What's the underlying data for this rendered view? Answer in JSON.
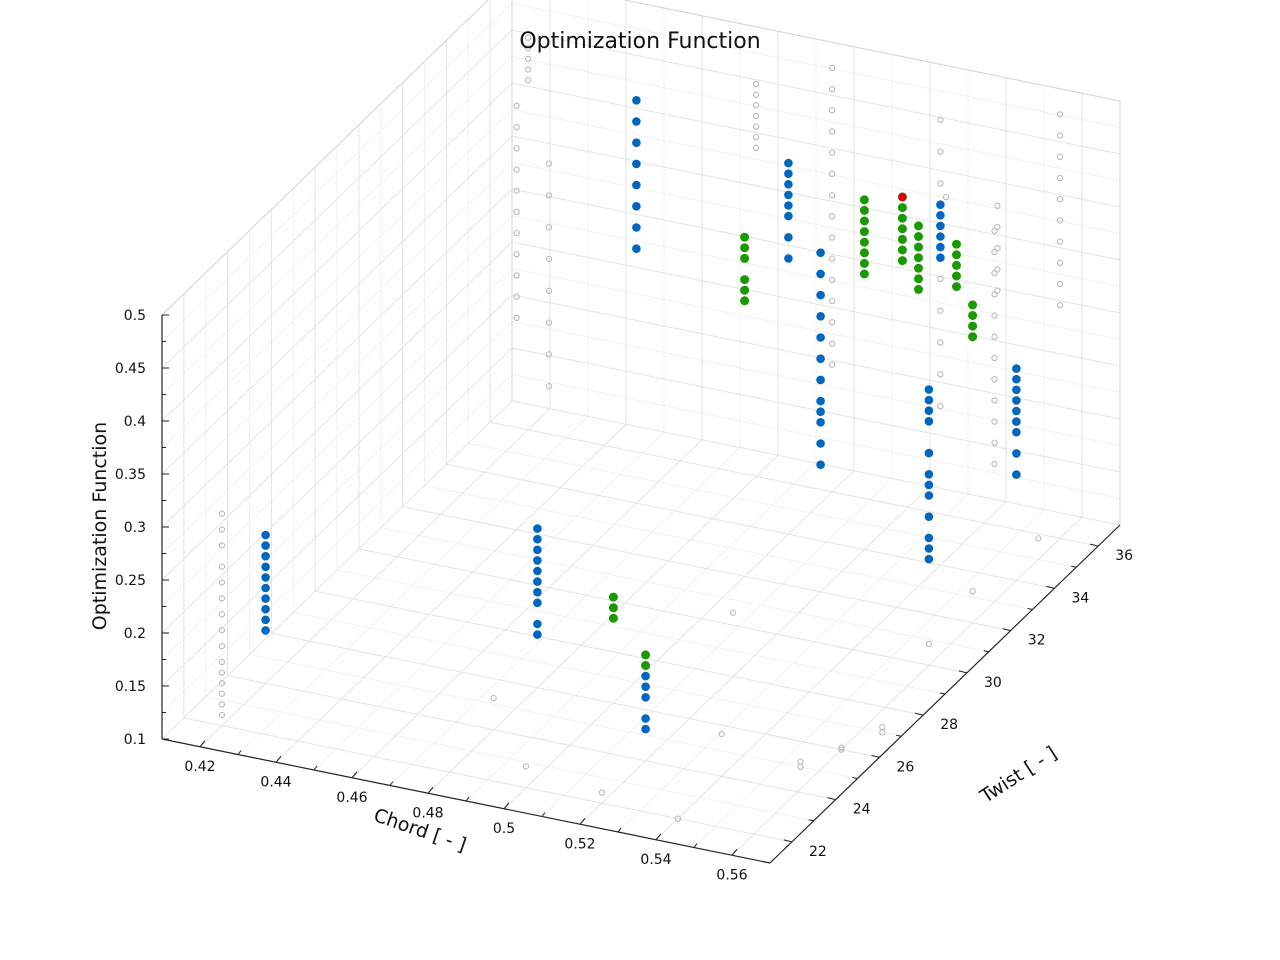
{
  "chart_data": {
    "type": "scatter",
    "title": "Optimization Function",
    "xlabel": "Chord [ - ]",
    "ylabel": "Twist [ - ]",
    "zlabel": "Optimization Function",
    "xlim": [
      0.41,
      0.57
    ],
    "ylim": [
      21,
      37
    ],
    "zlim": [
      0.1,
      0.5
    ],
    "x_ticks": [
      "0.42",
      "0.44",
      "0.46",
      "0.48",
      "0.5",
      "0.52",
      "0.54",
      "0.56"
    ],
    "y_ticks": [
      "22",
      "24",
      "26",
      "28",
      "30",
      "32",
      "34",
      "36"
    ],
    "z_ticks": [
      "0.1",
      "0.15",
      "0.2",
      "0.25",
      "0.3",
      "0.35",
      "0.4",
      "0.45",
      "0.5"
    ],
    "grid": true,
    "colors": {
      "explored": "#b8b8b8",
      "feasible": "#0066c0",
      "pareto": "#1a9900",
      "optimum": "#e00000"
    },
    "series": [
      {
        "marker": "open-circle-gray",
        "columns": [
          {
            "x": 0.42,
            "y": 22,
            "z": [
              0.3,
              0.285,
              0.27,
              0.25,
              0.235,
              0.22,
              0.205,
              0.19,
              0.175,
              0.16,
              0.15,
              0.14,
              0.13,
              0.12,
              0.11
            ]
          },
          {
            "x": 0.42,
            "y": 36,
            "z": [
              0.47,
              0.46,
              0.45,
              0.44,
              0.43
            ]
          },
          {
            "x": 0.44,
            "y": 32,
            "z": [
              0.5,
              0.48,
              0.46,
              0.44,
              0.42,
              0.4,
              0.38,
              0.36,
              0.34,
              0.32,
              0.3
            ]
          },
          {
            "x": 0.46,
            "y": 30,
            "z": [
              0.5,
              0.47,
              0.44,
              0.41,
              0.38,
              0.35,
              0.32,
              0.29
            ]
          },
          {
            "x": 0.48,
            "y": 36,
            "z": [
              0.47,
              0.46,
              0.45,
              0.44,
              0.43,
              0.42,
              0.41
            ]
          },
          {
            "x": 0.48,
            "y": 24,
            "z": [
              0.13
            ]
          },
          {
            "x": 0.5,
            "y": 36,
            "z": [
              0.5,
              0.48,
              0.46,
              0.44,
              0.42,
              0.4,
              0.38,
              0.36,
              0.34,
              0.32,
              0.3,
              0.28,
              0.26,
              0.24,
              0.22
            ]
          },
          {
            "x": 0.5,
            "y": 22,
            "z": [
              0.12
            ]
          },
          {
            "x": 0.52,
            "y": 22,
            "z": [
              0.11
            ]
          },
          {
            "x": 0.52,
            "y": 28,
            "z": [
              0.16
            ]
          },
          {
            "x": 0.53,
            "y": 36,
            "z": [
              0.4
            ]
          },
          {
            "x": 0.54,
            "y": 34,
            "z": [
              0.52,
              0.49,
              0.46,
              0.43,
              0.4,
              0.37,
              0.34,
              0.31,
              0.28,
              0.25
            ]
          },
          {
            "x": 0.54,
            "y": 24,
            "z": [
              0.14
            ]
          },
          {
            "x": 0.54,
            "y": 22,
            "z": [
              0.1
            ]
          },
          {
            "x": 0.555,
            "y": 34,
            "z": [
              0.45,
              0.43,
              0.41,
              0.39,
              0.37
            ]
          },
          {
            "x": 0.56,
            "y": 36,
            "z": [
              0.5,
              0.48,
              0.46,
              0.44,
              0.42,
              0.4,
              0.38,
              0.36,
              0.34,
              0.32
            ]
          },
          {
            "x": 0.56,
            "y": 33,
            "z": [
              0.45,
              0.43,
              0.41,
              0.39,
              0.37,
              0.35,
              0.33,
              0.31,
              0.29,
              0.27,
              0.25,
              0.23
            ]
          },
          {
            "x": 0.56,
            "y": 30,
            "z": [
              0.12
            ]
          },
          {
            "x": 0.555,
            "y": 25,
            "z": [
              0.105,
              0.1
            ]
          },
          {
            "x": 0.56,
            "y": 26,
            "z": [
              0.1,
              0.102
            ]
          },
          {
            "x": 0.565,
            "y": 27,
            "z": [
              0.105,
              0.1
            ]
          },
          {
            "x": 0.56,
            "y": 35,
            "z": [
              0.12
            ]
          },
          {
            "x": 0.56,
            "y": 32,
            "z": [
              0.13
            ]
          }
        ]
      },
      {
        "marker": "filled-circle-blue",
        "columns": [
          {
            "x": 0.42,
            "y": 24,
            "z": [
              0.24,
              0.23,
              0.22,
              0.21,
              0.2,
              0.19,
              0.18,
              0.17,
              0.16,
              0.15
            ]
          },
          {
            "x": 0.46,
            "y": 34,
            "z": [
              0.48,
              0.46,
              0.44,
              0.42,
              0.4,
              0.38,
              0.36,
              0.34
            ]
          },
          {
            "x": 0.48,
            "y": 26,
            "z": [
              0.25,
              0.24,
              0.23,
              0.22,
              0.21,
              0.2,
              0.19,
              0.18,
              0.16,
              0.15
            ]
          },
          {
            "x": 0.5,
            "y": 34,
            "z": [
              0.45,
              0.44,
              0.43,
              0.42,
              0.41,
              0.4,
              0.38,
              0.36
            ]
          },
          {
            "x": 0.52,
            "y": 32,
            "z": [
              0.42,
              0.4,
              0.38,
              0.36,
              0.34,
              0.32,
              0.3,
              0.28,
              0.27,
              0.26,
              0.24,
              0.22
            ]
          },
          {
            "x": 0.52,
            "y": 24,
            "z": [
              0.19,
              0.18,
              0.17,
              0.16,
              0.14,
              0.13
            ]
          },
          {
            "x": 0.54,
            "y": 34,
            "z": [
              0.44,
              0.43,
              0.42,
              0.41,
              0.4,
              0.39
            ]
          },
          {
            "x": 0.56,
            "y": 30,
            "z": [
              0.36,
              0.35,
              0.34,
              0.33,
              0.3,
              0.28,
              0.27,
              0.26,
              0.24,
              0.22,
              0.21,
              0.2
            ]
          },
          {
            "x": 0.56,
            "y": 34,
            "z": [
              0.3,
              0.29,
              0.28,
              0.27,
              0.26,
              0.25,
              0.24,
              0.22,
              0.2
            ]
          }
        ]
      },
      {
        "marker": "filled-circle-green",
        "columns": [
          {
            "x": 0.5,
            "y": 32,
            "z": [
              0.42,
              0.41,
              0.4,
              0.38,
              0.37,
              0.36
            ]
          },
          {
            "x": 0.52,
            "y": 34,
            "z": [
              0.43,
              0.42,
              0.41,
              0.4,
              0.39,
              0.38,
              0.37,
              0.36
            ]
          },
          {
            "x": 0.53,
            "y": 34,
            "z": [
              0.44,
              0.43,
              0.42,
              0.41,
              0.4,
              0.39,
              0.38
            ]
          },
          {
            "x": 0.54,
            "y": 33,
            "z": [
              0.44,
              0.43,
              0.42,
              0.41,
              0.4,
              0.39,
              0.38
            ]
          },
          {
            "x": 0.55,
            "y": 33,
            "z": [
              0.43,
              0.42,
              0.41,
              0.4,
              0.39
            ]
          },
          {
            "x": 0.56,
            "y": 32,
            "z": [
              0.4,
              0.39,
              0.38,
              0.37
            ]
          },
          {
            "x": 0.5,
            "y": 26,
            "z": [
              0.2,
              0.19,
              0.18
            ]
          },
          {
            "x": 0.52,
            "y": 24,
            "z": [
              0.2,
              0.19
            ]
          }
        ]
      },
      {
        "marker": "filled-circle-red",
        "columns": [
          {
            "x": 0.53,
            "y": 34,
            "z": [
              0.44
            ]
          }
        ]
      }
    ]
  }
}
